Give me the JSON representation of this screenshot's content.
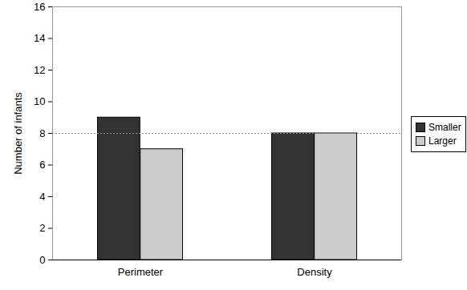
{
  "chart_data": {
    "type": "bar",
    "categories": [
      "Perimeter",
      "Density"
    ],
    "series": [
      {
        "name": "Smaller",
        "color": "#333333",
        "values": [
          9,
          8
        ]
      },
      {
        "name": "Larger",
        "color": "#cccccc",
        "values": [
          7,
          8
        ]
      }
    ],
    "ylabel": "Number of infants",
    "ylim": [
      0,
      16
    ],
    "yticks": [
      0,
      2,
      4,
      6,
      8,
      10,
      12,
      14,
      16
    ],
    "legend": "right",
    "reference_line": 8
  }
}
